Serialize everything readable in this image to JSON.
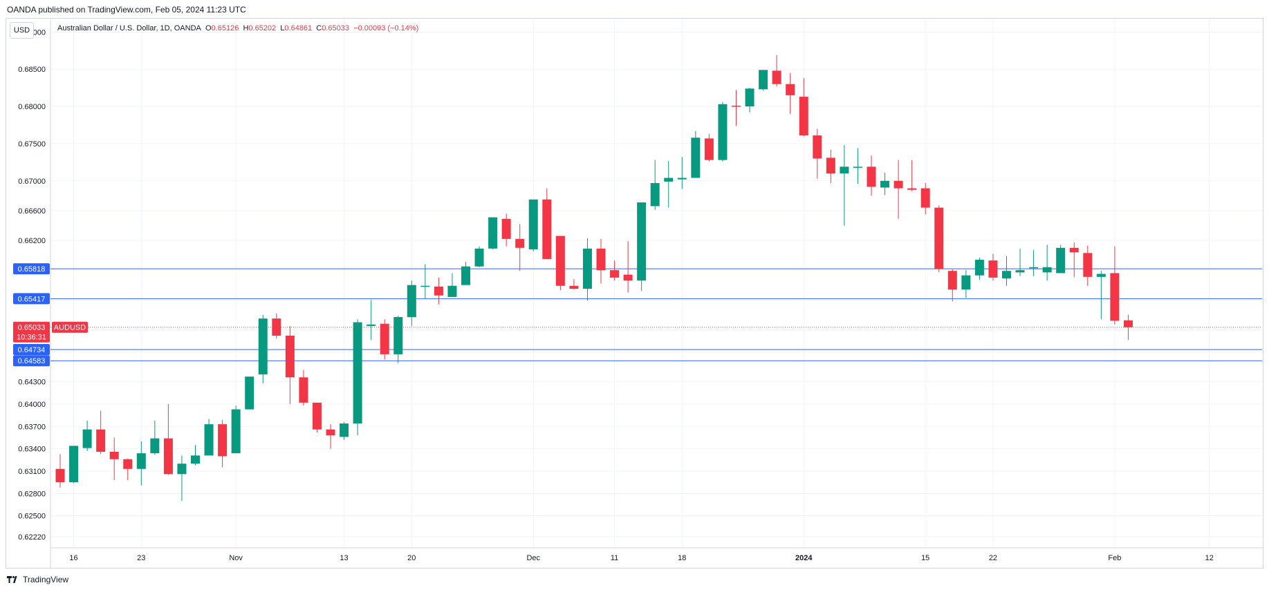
{
  "header": {
    "publisher": "OANDA published on TradingView.com, Feb 05, 2024 11:23 UTC",
    "currency_button": "USD",
    "legend_title": "Australian Dollar / U.S. Dollar, 1D, OANDA",
    "o_label": "O",
    "o_value": "0.65126",
    "h_label": "H",
    "h_value": "0.65202",
    "l_label": "L",
    "l_value": "0.64861",
    "c_label": "C",
    "c_value": "0.65033",
    "change": "−0.00093 (−0.14%)"
  },
  "footer": {
    "brand": "TradingView"
  },
  "colors": {
    "up": "#089981",
    "down": "#f23645",
    "line": "#2962ff",
    "grid": "#f0f3fa",
    "border": "#d1d4dc"
  },
  "chart_data": {
    "type": "candlestick",
    "symbol": "AUDUSD",
    "ylim": [
      0.6207,
      0.6917
    ],
    "y_ticks": [
      "0.69000",
      "0.68500",
      "0.68000",
      "0.67500",
      "0.67000",
      "0.66600",
      "0.66200",
      "0.65800",
      "0.65400",
      "0.65000",
      "0.64700",
      "0.64300",
      "0.64000",
      "0.63700",
      "0.63400",
      "0.63100",
      "0.62800",
      "0.62500",
      "0.62220"
    ],
    "x_ticks": [
      {
        "label": "16",
        "index": 1,
        "bold": false
      },
      {
        "label": "23",
        "index": 6,
        "bold": false
      },
      {
        "label": "Nov",
        "index": 13,
        "bold": false
      },
      {
        "label": "13",
        "index": 21,
        "bold": false
      },
      {
        "label": "20",
        "index": 26,
        "bold": false
      },
      {
        "label": "Dec",
        "index": 35,
        "bold": false
      },
      {
        "label": "11",
        "index": 41,
        "bold": false
      },
      {
        "label": "18",
        "index": 46,
        "bold": false
      },
      {
        "label": "2024",
        "index": 55,
        "bold": true
      },
      {
        "label": "15",
        "index": 64,
        "bold": false
      },
      {
        "label": "22",
        "index": 69,
        "bold": false
      },
      {
        "label": "Feb",
        "index": 78,
        "bold": false
      },
      {
        "label": "12",
        "index": 85,
        "bold": false
      }
    ],
    "horizontal_lines": [
      {
        "value": 0.65818,
        "label": "0.65818"
      },
      {
        "value": 0.65417,
        "label": "0.65417"
      },
      {
        "value": 0.64734,
        "label": "0.64734"
      },
      {
        "value": 0.64583,
        "label": "0.64583"
      }
    ],
    "current_price": {
      "value": 0.65033,
      "label": "0.65033",
      "countdown": "10:36:31",
      "symbol": "AUDUSD"
    },
    "candles": [
      {
        "o": 0.6313,
        "h": 0.6333,
        "l": 0.6288,
        "c": 0.6295
      },
      {
        "o": 0.6295,
        "h": 0.6342,
        "l": 0.6294,
        "c": 0.6344
      },
      {
        "o": 0.6341,
        "h": 0.6378,
        "l": 0.6337,
        "c": 0.6366
      },
      {
        "o": 0.6366,
        "h": 0.6391,
        "l": 0.6333,
        "c": 0.6336
      },
      {
        "o": 0.6336,
        "h": 0.6355,
        "l": 0.6298,
        "c": 0.6326
      },
      {
        "o": 0.6326,
        "h": 0.6327,
        "l": 0.6298,
        "c": 0.6313
      },
      {
        "o": 0.6313,
        "h": 0.635,
        "l": 0.6291,
        "c": 0.6334
      },
      {
        "o": 0.6334,
        "h": 0.6378,
        "l": 0.6332,
        "c": 0.6354
      },
      {
        "o": 0.6354,
        "h": 0.64,
        "l": 0.6305,
        "c": 0.6306
      },
      {
        "o": 0.6306,
        "h": 0.6331,
        "l": 0.627,
        "c": 0.632
      },
      {
        "o": 0.632,
        "h": 0.6345,
        "l": 0.6318,
        "c": 0.6331
      },
      {
        "o": 0.6331,
        "h": 0.638,
        "l": 0.6331,
        "c": 0.6373
      },
      {
        "o": 0.6373,
        "h": 0.6379,
        "l": 0.6315,
        "c": 0.633
      },
      {
        "o": 0.6334,
        "h": 0.6398,
        "l": 0.6334,
        "c": 0.6393
      },
      {
        "o": 0.6393,
        "h": 0.643,
        "l": 0.6393,
        "c": 0.6437
      },
      {
        "o": 0.644,
        "h": 0.652,
        "l": 0.6428,
        "c": 0.6515
      },
      {
        "o": 0.6515,
        "h": 0.6522,
        "l": 0.6488,
        "c": 0.6492
      },
      {
        "o": 0.6492,
        "h": 0.6505,
        "l": 0.64,
        "c": 0.6436
      },
      {
        "o": 0.6436,
        "h": 0.6446,
        "l": 0.6398,
        "c": 0.6402
      },
      {
        "o": 0.6402,
        "h": 0.6402,
        "l": 0.6362,
        "c": 0.6366
      },
      {
        "o": 0.6366,
        "h": 0.6373,
        "l": 0.634,
        "c": 0.6358
      },
      {
        "o": 0.6356,
        "h": 0.6376,
        "l": 0.6352,
        "c": 0.6374
      },
      {
        "o": 0.6374,
        "h": 0.6514,
        "l": 0.6358,
        "c": 0.651
      },
      {
        "o": 0.6505,
        "h": 0.654,
        "l": 0.6486,
        "c": 0.6507
      },
      {
        "o": 0.6508,
        "h": 0.6514,
        "l": 0.646,
        "c": 0.6467
      },
      {
        "o": 0.6467,
        "h": 0.6519,
        "l": 0.6455,
        "c": 0.6517
      },
      {
        "o": 0.6517,
        "h": 0.6566,
        "l": 0.6505,
        "c": 0.656
      },
      {
        "o": 0.6559,
        "h": 0.6588,
        "l": 0.6542,
        "c": 0.6559
      },
      {
        "o": 0.6558,
        "h": 0.657,
        "l": 0.6534,
        "c": 0.6546
      },
      {
        "o": 0.6544,
        "h": 0.6576,
        "l": 0.6544,
        "c": 0.6559
      },
      {
        "o": 0.656,
        "h": 0.6591,
        "l": 0.656,
        "c": 0.6585
      },
      {
        "o": 0.6585,
        "h": 0.6612,
        "l": 0.6584,
        "c": 0.6609
      },
      {
        "o": 0.6609,
        "h": 0.6649,
        "l": 0.6608,
        "c": 0.6651
      },
      {
        "o": 0.6649,
        "h": 0.6656,
        "l": 0.6612,
        "c": 0.6622
      },
      {
        "o": 0.6622,
        "h": 0.6642,
        "l": 0.6579,
        "c": 0.661
      },
      {
        "o": 0.6608,
        "h": 0.6673,
        "l": 0.6605,
        "c": 0.6675
      },
      {
        "o": 0.6675,
        "h": 0.669,
        "l": 0.6595,
        "c": 0.6595
      },
      {
        "o": 0.6626,
        "h": 0.6626,
        "l": 0.6553,
        "c": 0.6559
      },
      {
        "o": 0.6559,
        "h": 0.6568,
        "l": 0.6554,
        "c": 0.6555
      },
      {
        "o": 0.6555,
        "h": 0.6623,
        "l": 0.6539,
        "c": 0.6609
      },
      {
        "o": 0.6609,
        "h": 0.6622,
        "l": 0.6562,
        "c": 0.658
      },
      {
        "o": 0.658,
        "h": 0.6593,
        "l": 0.6566,
        "c": 0.657
      },
      {
        "o": 0.6574,
        "h": 0.6619,
        "l": 0.655,
        "c": 0.6566
      },
      {
        "o": 0.6566,
        "h": 0.6671,
        "l": 0.6552,
        "c": 0.6671
      },
      {
        "o": 0.6666,
        "h": 0.6728,
        "l": 0.6661,
        "c": 0.6697
      },
      {
        "o": 0.6699,
        "h": 0.6727,
        "l": 0.6664,
        "c": 0.6704
      },
      {
        "o": 0.6702,
        "h": 0.6732,
        "l": 0.6689,
        "c": 0.6704
      },
      {
        "o": 0.6704,
        "h": 0.6767,
        "l": 0.6704,
        "c": 0.6758
      },
      {
        "o": 0.6757,
        "h": 0.6763,
        "l": 0.6726,
        "c": 0.6728
      },
      {
        "o": 0.6728,
        "h": 0.6806,
        "l": 0.6726,
        "c": 0.6803
      },
      {
        "o": 0.6801,
        "h": 0.6822,
        "l": 0.6774,
        "c": 0.68
      },
      {
        "o": 0.68,
        "h": 0.6825,
        "l": 0.6792,
        "c": 0.6824
      },
      {
        "o": 0.6823,
        "h": 0.6849,
        "l": 0.6821,
        "c": 0.6849
      },
      {
        "o": 0.6848,
        "h": 0.6869,
        "l": 0.6827,
        "c": 0.683
      },
      {
        "o": 0.683,
        "h": 0.6845,
        "l": 0.679,
        "c": 0.6815
      },
      {
        "o": 0.6813,
        "h": 0.6838,
        "l": 0.676,
        "c": 0.6761
      },
      {
        "o": 0.6761,
        "h": 0.677,
        "l": 0.6703,
        "c": 0.673
      },
      {
        "o": 0.6731,
        "h": 0.6742,
        "l": 0.6697,
        "c": 0.671
      },
      {
        "o": 0.671,
        "h": 0.6748,
        "l": 0.664,
        "c": 0.6719
      },
      {
        "o": 0.6719,
        "h": 0.6744,
        "l": 0.6696,
        "c": 0.6719
      },
      {
        "o": 0.6719,
        "h": 0.6734,
        "l": 0.668,
        "c": 0.6692
      },
      {
        "o": 0.6691,
        "h": 0.6711,
        "l": 0.6681,
        "c": 0.67
      },
      {
        "o": 0.67,
        "h": 0.6728,
        "l": 0.6649,
        "c": 0.669
      },
      {
        "o": 0.669,
        "h": 0.6728,
        "l": 0.6686,
        "c": 0.6688
      },
      {
        "o": 0.669,
        "h": 0.6697,
        "l": 0.6655,
        "c": 0.6664
      },
      {
        "o": 0.6664,
        "h": 0.6667,
        "l": 0.6577,
        "c": 0.6582
      },
      {
        "o": 0.6579,
        "h": 0.6581,
        "l": 0.6538,
        "c": 0.6554
      },
      {
        "o": 0.6554,
        "h": 0.658,
        "l": 0.6543,
        "c": 0.6573
      },
      {
        "o": 0.6573,
        "h": 0.6597,
        "l": 0.6567,
        "c": 0.6594
      },
      {
        "o": 0.6593,
        "h": 0.6602,
        "l": 0.6566,
        "c": 0.657
      },
      {
        "o": 0.6569,
        "h": 0.6599,
        "l": 0.6559,
        "c": 0.6579
      },
      {
        "o": 0.6577,
        "h": 0.6609,
        "l": 0.6572,
        "c": 0.658
      },
      {
        "o": 0.6583,
        "h": 0.6607,
        "l": 0.6572,
        "c": 0.6584
      },
      {
        "o": 0.6577,
        "h": 0.6614,
        "l": 0.6566,
        "c": 0.6584
      },
      {
        "o": 0.6576,
        "h": 0.6614,
        "l": 0.6576,
        "c": 0.661
      },
      {
        "o": 0.661,
        "h": 0.6617,
        "l": 0.6571,
        "c": 0.6604
      },
      {
        "o": 0.6603,
        "h": 0.6613,
        "l": 0.6559,
        "c": 0.6571
      },
      {
        "o": 0.6571,
        "h": 0.6579,
        "l": 0.6514,
        "c": 0.6575
      },
      {
        "o": 0.6576,
        "h": 0.6612,
        "l": 0.6507,
        "c": 0.6512
      },
      {
        "o": 0.65126,
        "h": 0.65202,
        "l": 0.64861,
        "c": 0.65033
      }
    ]
  }
}
